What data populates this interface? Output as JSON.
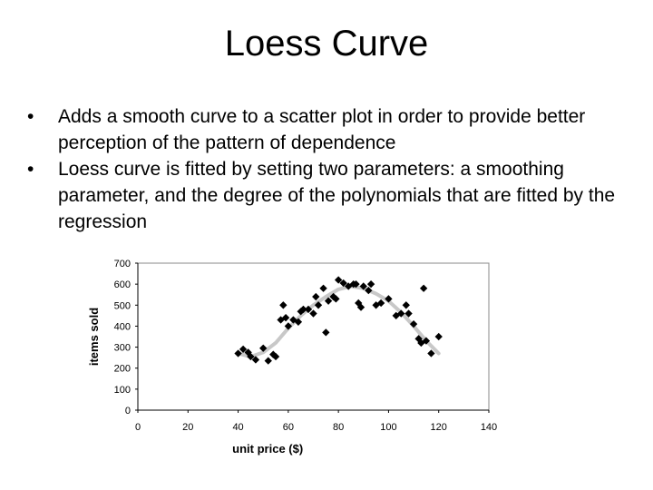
{
  "slide": {
    "title": "Loess Curve",
    "bullets": [
      "Adds a smooth curve to a scatter plot in order to provide better perception of the pattern of dependence",
      "Loess curve is fitted by setting two parameters: a smoothing parameter, and the degree of the polynomials that are fitted by the regression"
    ],
    "bullet_glyph": "•"
  },
  "chart_data": {
    "type": "scatter",
    "title": "",
    "xlabel": "unit price ($)",
    "ylabel": "items sold",
    "xlim": [
      0,
      140
    ],
    "ylim": [
      0,
      700
    ],
    "xticks": [
      0,
      20,
      40,
      60,
      80,
      100,
      120,
      140
    ],
    "yticks": [
      0,
      100,
      200,
      300,
      400,
      500,
      600,
      700
    ],
    "grid": false,
    "plot_border": true,
    "colors": {
      "points": "#000000",
      "curve": "#c8c8c8",
      "axes": "#000000",
      "border": "#888888"
    },
    "points": [
      {
        "x": 40,
        "y": 270
      },
      {
        "x": 42,
        "y": 290
      },
      {
        "x": 44,
        "y": 275
      },
      {
        "x": 45,
        "y": 255
      },
      {
        "x": 47,
        "y": 240
      },
      {
        "x": 50,
        "y": 295
      },
      {
        "x": 52,
        "y": 235
      },
      {
        "x": 54,
        "y": 265
      },
      {
        "x": 55,
        "y": 255
      },
      {
        "x": 57,
        "y": 430
      },
      {
        "x": 58,
        "y": 500
      },
      {
        "x": 59,
        "y": 440
      },
      {
        "x": 60,
        "y": 400
      },
      {
        "x": 62,
        "y": 430
      },
      {
        "x": 64,
        "y": 420
      },
      {
        "x": 65,
        "y": 470
      },
      {
        "x": 66,
        "y": 480
      },
      {
        "x": 68,
        "y": 480
      },
      {
        "x": 70,
        "y": 460
      },
      {
        "x": 71,
        "y": 540
      },
      {
        "x": 72,
        "y": 500
      },
      {
        "x": 74,
        "y": 580
      },
      {
        "x": 75,
        "y": 370
      },
      {
        "x": 76,
        "y": 520
      },
      {
        "x": 78,
        "y": 540
      },
      {
        "x": 79,
        "y": 530
      },
      {
        "x": 80,
        "y": 620
      },
      {
        "x": 82,
        "y": 605
      },
      {
        "x": 84,
        "y": 590
      },
      {
        "x": 86,
        "y": 600
      },
      {
        "x": 87,
        "y": 600
      },
      {
        "x": 88,
        "y": 510
      },
      {
        "x": 89,
        "y": 490
      },
      {
        "x": 90,
        "y": 590
      },
      {
        "x": 92,
        "y": 570
      },
      {
        "x": 93,
        "y": 600
      },
      {
        "x": 95,
        "y": 500
      },
      {
        "x": 97,
        "y": 510
      },
      {
        "x": 100,
        "y": 530
      },
      {
        "x": 103,
        "y": 450
      },
      {
        "x": 105,
        "y": 460
      },
      {
        "x": 107,
        "y": 500
      },
      {
        "x": 108,
        "y": 460
      },
      {
        "x": 110,
        "y": 410
      },
      {
        "x": 112,
        "y": 340
      },
      {
        "x": 113,
        "y": 320
      },
      {
        "x": 114,
        "y": 580
      },
      {
        "x": 115,
        "y": 330
      },
      {
        "x": 117,
        "y": 270
      },
      {
        "x": 120,
        "y": 350
      }
    ],
    "loess_curve": [
      {
        "x": 40,
        "y": 270
      },
      {
        "x": 45,
        "y": 255
      },
      {
        "x": 50,
        "y": 275
      },
      {
        "x": 55,
        "y": 320
      },
      {
        "x": 60,
        "y": 390
      },
      {
        "x": 65,
        "y": 450
      },
      {
        "x": 70,
        "y": 500
      },
      {
        "x": 75,
        "y": 540
      },
      {
        "x": 80,
        "y": 575
      },
      {
        "x": 85,
        "y": 590
      },
      {
        "x": 90,
        "y": 580
      },
      {
        "x": 95,
        "y": 555
      },
      {
        "x": 100,
        "y": 520
      },
      {
        "x": 105,
        "y": 465
      },
      {
        "x": 110,
        "y": 400
      },
      {
        "x": 115,
        "y": 330
      },
      {
        "x": 120,
        "y": 270
      }
    ]
  }
}
